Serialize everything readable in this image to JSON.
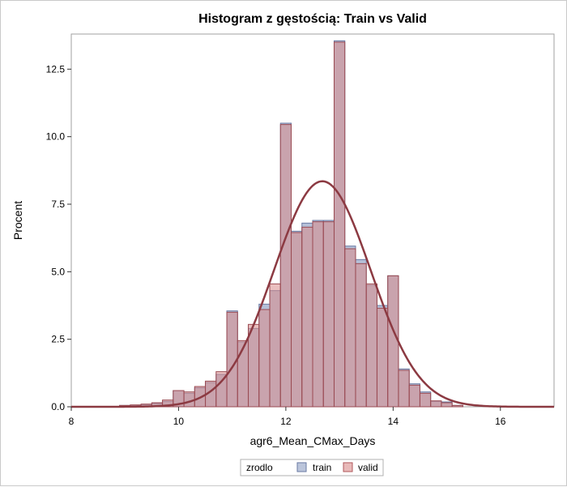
{
  "chart_data": {
    "type": "bar",
    "title": "Histogram z gęstością: Train vs Valid",
    "xlabel": "agr6_Mean_CMax_Days",
    "ylabel": "Procent",
    "xlim": [
      8,
      17
    ],
    "ylim": [
      0,
      13.8
    ],
    "x_ticks": [
      "8",
      "10",
      "12",
      "14",
      "16"
    ],
    "y_ticks": [
      "0.0",
      "2.5",
      "5.0",
      "7.5",
      "10.0",
      "12.5"
    ],
    "bin_width": 0.2,
    "bin_centers": [
      9.0,
      9.2,
      9.4,
      9.6,
      9.8,
      10.0,
      10.2,
      10.4,
      10.6,
      10.8,
      11.0,
      11.2,
      11.4,
      11.6,
      11.8,
      12.0,
      12.2,
      12.4,
      12.6,
      12.8,
      13.0,
      13.2,
      13.4,
      13.6,
      13.8,
      14.0,
      14.2,
      14.4,
      14.6,
      14.8,
      15.0,
      15.2
    ],
    "series": [
      {
        "name": "train",
        "color": "#8e9ec3",
        "values": [
          0.05,
          0.06,
          0.08,
          0.12,
          0.2,
          0.6,
          0.5,
          0.7,
          0.9,
          1.2,
          3.55,
          2.4,
          2.9,
          3.8,
          4.3,
          10.5,
          6.5,
          6.8,
          6.9,
          6.9,
          13.55,
          5.95,
          5.45,
          4.5,
          3.75,
          4.85,
          1.4,
          0.85,
          0.55,
          0.2,
          0.18,
          0.05
        ]
      },
      {
        "name": "valid",
        "color": "#d98a8a",
        "values": [
          0.05,
          0.07,
          0.1,
          0.15,
          0.25,
          0.6,
          0.55,
          0.75,
          0.95,
          1.3,
          3.5,
          2.45,
          3.05,
          3.6,
          4.55,
          10.45,
          6.45,
          6.65,
          6.85,
          6.85,
          13.5,
          5.85,
          5.3,
          4.55,
          3.65,
          4.85,
          1.35,
          0.8,
          0.5,
          0.22,
          0.15,
          0.05
        ]
      }
    ],
    "density_curve": {
      "mean": 12.68,
      "sd": 0.9,
      "peak": 8.35,
      "color": "#8c3a42"
    },
    "legend": {
      "title": "zrodlo",
      "items": [
        "train",
        "valid"
      ],
      "placement": "bottom-center"
    }
  }
}
